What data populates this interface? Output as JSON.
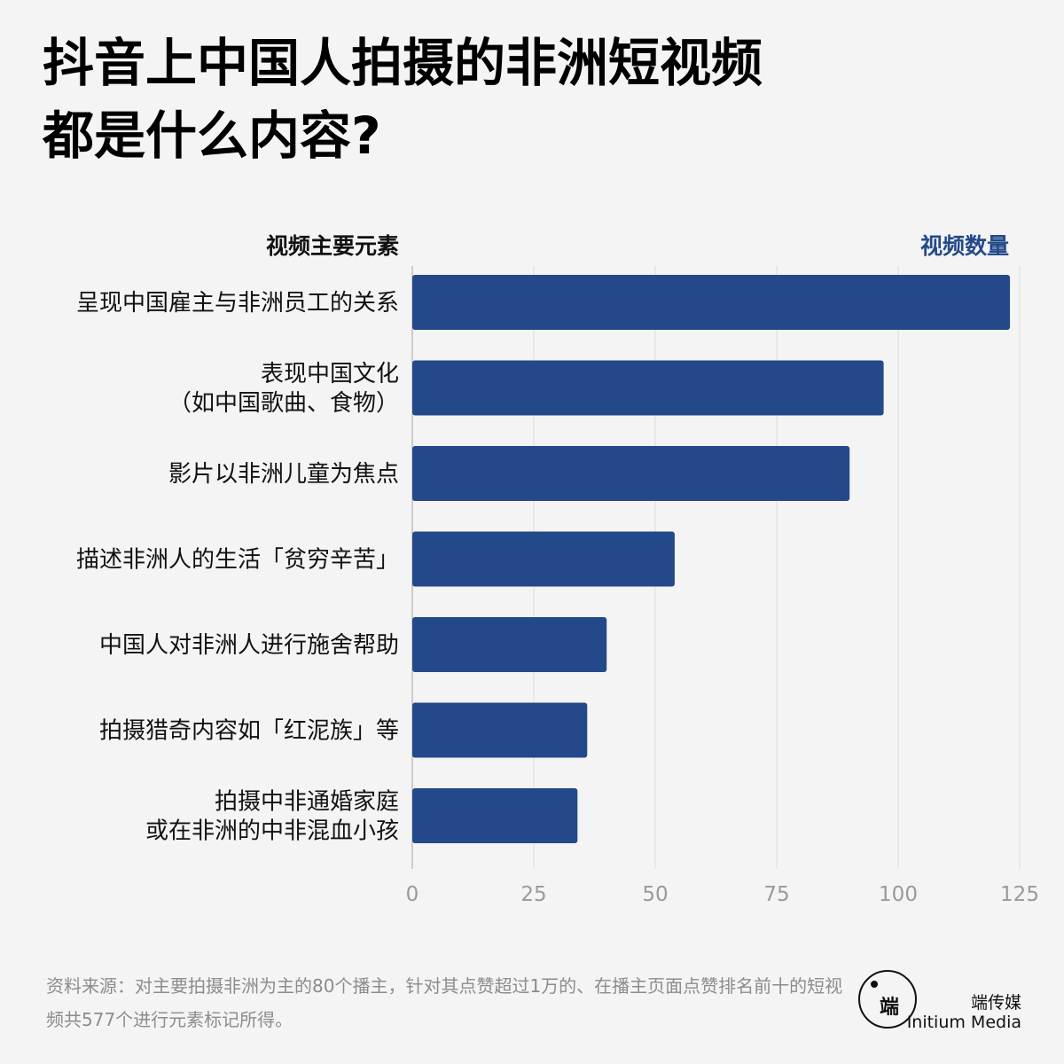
{
  "title": {
    "line1": "抖音上中国人拍摄的非洲短视频",
    "line2": "都是什么内容?"
  },
  "headers": {
    "left": "视频主要元素",
    "right": "视频数量"
  },
  "colors": {
    "bar": "#24498a",
    "background": "#f4f4f4",
    "grid": "#dcdcdc",
    "tick_text": "#9a9a9a"
  },
  "chart_data": {
    "type": "bar",
    "orientation": "horizontal",
    "categories": [
      [
        "呈现中国雇主与非洲员工的关系"
      ],
      [
        "表现中国文化",
        "（如中国歌曲、食物）"
      ],
      [
        "影片以非洲儿童为焦点"
      ],
      [
        "描述非洲人的生活「贫穷辛苦」"
      ],
      [
        "中国人对非洲人进行施舍帮助"
      ],
      [
        "拍摄猎奇内容如「红泥族」等"
      ],
      [
        "拍摄中非通婚家庭",
        "或在非洲的中非混血小孩"
      ]
    ],
    "values": [
      123,
      97,
      90,
      54,
      40,
      36,
      34
    ],
    "xlim": [
      0,
      125
    ],
    "xticks": [
      0,
      25,
      50,
      75,
      100,
      125
    ],
    "grid": true
  },
  "footer": {
    "source": "资料来源：对主要拍摄非洲为主的80个播主，针对其点赞超过1万的、在播主页面点赞排名前十的短视频共577个进行元素标记所得。"
  },
  "brand": {
    "logo_glyph": "端",
    "name_cn": "端传媒",
    "name_en": "Initium Media"
  }
}
